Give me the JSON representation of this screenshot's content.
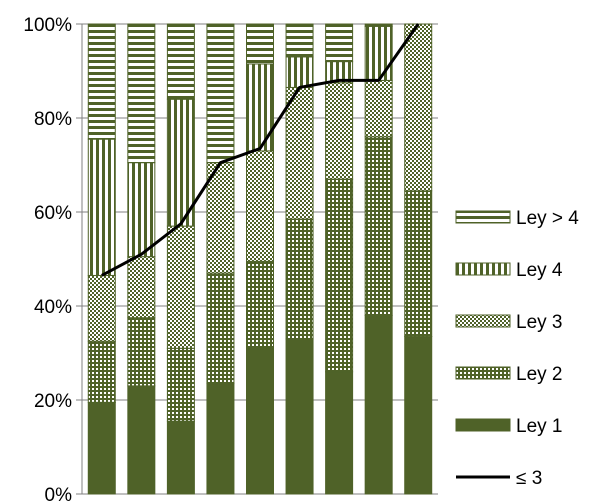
{
  "chart_data": {
    "type": "bar",
    "stacked": true,
    "normalized": true,
    "categories": [
      "",
      "",
      "",
      "",
      "",
      "",
      "",
      "",
      ""
    ],
    "ylim": [
      0,
      100
    ],
    "yticks": [
      "0%",
      "20%",
      "40%",
      "60%",
      "80%",
      "100%"
    ],
    "grid": true,
    "legend_position": "right",
    "series": [
      {
        "name": "Ley 1",
        "pattern": "solid",
        "values": [
          19.5,
          23,
          15.5,
          23.5,
          31,
          33,
          26,
          38,
          33.5
        ]
      },
      {
        "name": "Ley 2",
        "pattern": "dots",
        "values": [
          13,
          14.5,
          15.5,
          23.5,
          18.5,
          25.5,
          41,
          38,
          31
        ]
      },
      {
        "name": "Ley 3",
        "pattern": "checker",
        "values": [
          14,
          13,
          26,
          23.5,
          23.5,
          28,
          20.5,
          12,
          35.5
        ]
      },
      {
        "name": "Ley 4",
        "pattern": "vertical-stripes",
        "values": [
          29,
          20,
          27,
          0,
          18.5,
          6.5,
          4.5,
          11.5,
          0
        ]
      },
      {
        "name": "Ley > 4",
        "pattern": "horizontal-stripes",
        "values": [
          24.5,
          29.5,
          16,
          29.5,
          8.5,
          7,
          8,
          0.5,
          0
        ]
      }
    ],
    "line_series": {
      "name": "≤ 3",
      "values": [
        46.5,
        51,
        57.5,
        70.5,
        73.5,
        86.5,
        88,
        88,
        100
      ]
    },
    "colors": {
      "dark": "#4f6228",
      "light": "#ffffff",
      "line": "#000000",
      "grid": "#808080"
    }
  }
}
